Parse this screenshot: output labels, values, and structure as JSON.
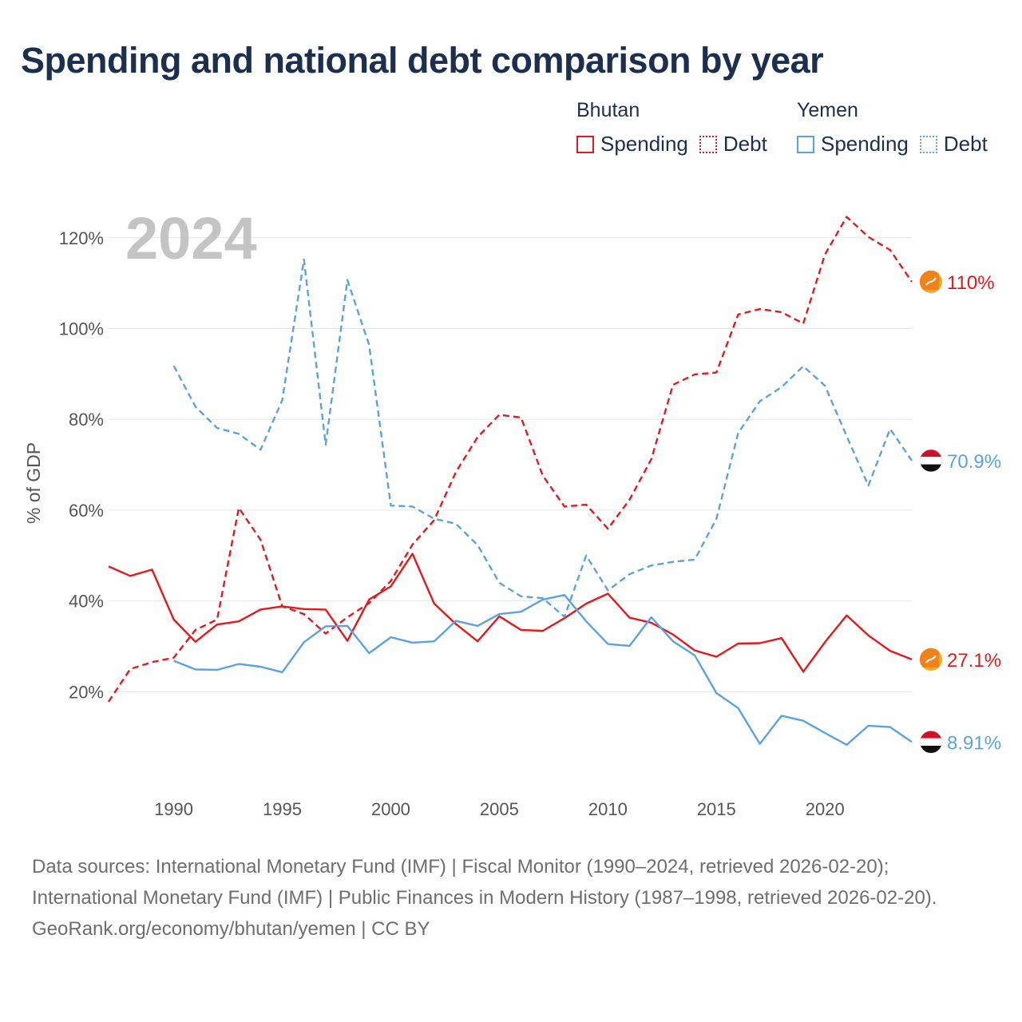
{
  "title": "Spending and national debt comparison by year",
  "legend": {
    "groups": [
      {
        "name": "Bhutan",
        "items": [
          "Spending",
          "Debt"
        ],
        "color": "#e31a1c"
      },
      {
        "name": "Yemen",
        "items": [
          "Spending",
          "Debt"
        ],
        "color": "#5ba3e0"
      }
    ]
  },
  "footer": {
    "sources": "Data sources: International Monetary Fund (IMF) | Fiscal Monitor (1990–2024, retrieved 2026-02-20); International Monetary Fund (IMF) | Public Finances in Modern History (1987–1998, retrieved 2026-02-20).",
    "credit": "GeoRank.org/economy/bhutan/yemen | CC BY"
  },
  "chart_data": {
    "type": "line",
    "title": "Spending and national debt comparison by year",
    "year_label": "2024",
    "ylabel": "% of GDP",
    "xlim": [
      1987,
      2024
    ],
    "ylim": [
      0,
      125
    ],
    "x_ticks": [
      1990,
      1995,
      2000,
      2005,
      2010,
      2015,
      2020
    ],
    "y_ticks": [
      20,
      40,
      60,
      80,
      100,
      120
    ],
    "y_tick_labels": [
      "20%",
      "40%",
      "60%",
      "80%",
      "100%",
      "120%"
    ],
    "grid": true,
    "series": [
      {
        "name": "Bhutan Spending",
        "color": "#e31a1c",
        "dash": "solid",
        "start_year": 1987,
        "values": [
          47.6,
          45.5,
          46.9,
          35.9,
          31,
          34.8,
          35.5,
          38.1,
          38.8,
          38.2,
          38.1,
          31.2,
          40.3,
          43.2,
          50.4,
          39.4,
          34.9,
          31.1,
          36.6,
          33.6,
          33.4,
          36.2,
          39.4,
          41.6,
          36.3,
          35.2,
          32.6,
          29.1,
          27.7,
          30.6,
          30.7,
          31.8,
          24.4,
          30.9,
          36.8,
          32.4,
          29,
          27.1
        ],
        "end_label": "27.1%"
      },
      {
        "name": "Bhutan Debt",
        "color": "#e31a1c",
        "dash": "dashed",
        "start_year": 1987,
        "values": [
          17.8,
          25,
          26.5,
          27.5,
          33.6,
          35.9,
          60.5,
          53.5,
          38.8,
          37.1,
          32.8,
          36.4,
          39.5,
          44.4,
          52.4,
          57.8,
          68.4,
          76.1,
          81,
          80.4,
          67.6,
          60.8,
          61.2,
          55.9,
          62.3,
          71.2,
          87.6,
          89.9,
          90.3,
          103.1,
          104.3,
          103.6,
          101.1,
          116.3,
          124.6,
          120.2,
          117.3,
          110.3
        ],
        "end_label": "110%"
      },
      {
        "name": "Yemen Spending",
        "color": "#5ba3e0",
        "dash": "solid",
        "start_year": 1990,
        "values": [
          26.8,
          24.9,
          24.8,
          26.1,
          25.5,
          24.3,
          30.9,
          34.4,
          34.5,
          28.5,
          32,
          30.8,
          31.1,
          35.6,
          34.5,
          37.1,
          37.6,
          40.3,
          41.3,
          35.5,
          30.5,
          30.1,
          36.4,
          31.1,
          28,
          19.7,
          16.4,
          8.5,
          14.7,
          13.6,
          10.9,
          8.3,
          12.5,
          12.2,
          8.91
        ],
        "end_label": "8.91%"
      },
      {
        "name": "Yemen Debt",
        "color": "#5ba3e0",
        "dash": "dashed",
        "start_year": 1990,
        "values": [
          91.8,
          82.8,
          78.1,
          76.8,
          73.3,
          84.2,
          115.2,
          74.4,
          110.7,
          96.4,
          61,
          60.8,
          58.1,
          57,
          52.3,
          44,
          41,
          40.6,
          36.5,
          50,
          42.3,
          45.9,
          47.8,
          48.6,
          49.1,
          58.1,
          77,
          84,
          87.1,
          91.7,
          87.4,
          76.3,
          65.4,
          77.9,
          70.9
        ],
        "end_label": "70.9%"
      }
    ]
  }
}
